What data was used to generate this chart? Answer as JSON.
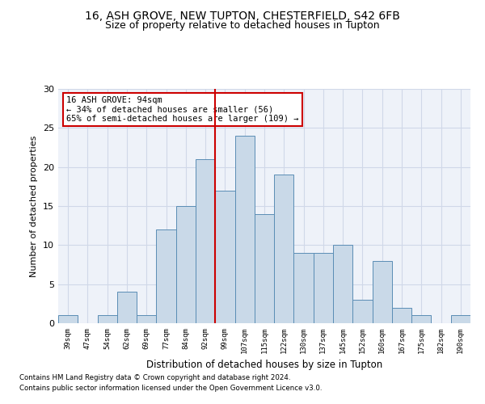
{
  "title_line1": "16, ASH GROVE, NEW TUPTON, CHESTERFIELD, S42 6FB",
  "title_line2": "Size of property relative to detached houses in Tupton",
  "xlabel": "Distribution of detached houses by size in Tupton",
  "ylabel": "Number of detached properties",
  "footnote1": "Contains HM Land Registry data © Crown copyright and database right 2024.",
  "footnote2": "Contains public sector information licensed under the Open Government Licence v3.0.",
  "annotation_line1": "16 ASH GROVE: 94sqm",
  "annotation_line2": "← 34% of detached houses are smaller (56)",
  "annotation_line3": "65% of semi-detached houses are larger (109) →",
  "bin_labels": [
    "39sqm",
    "47sqm",
    "54sqm",
    "62sqm",
    "69sqm",
    "77sqm",
    "84sqm",
    "92sqm",
    "99sqm",
    "107sqm",
    "115sqm",
    "122sqm",
    "130sqm",
    "137sqm",
    "145sqm",
    "152sqm",
    "160sqm",
    "167sqm",
    "175sqm",
    "182sqm",
    "190sqm"
  ],
  "bar_heights": [
    1,
    0,
    1,
    4,
    1,
    12,
    15,
    21,
    17,
    24,
    14,
    19,
    9,
    9,
    10,
    3,
    8,
    2,
    1,
    0,
    1
  ],
  "bar_color": "#c9d9e8",
  "bar_edge_color": "#5a8db5",
  "grid_color": "#d0d8e8",
  "background_color": "#eef2f9",
  "vline_color": "#cc0000",
  "ylim": [
    0,
    30
  ],
  "yticks": [
    0,
    5,
    10,
    15,
    20,
    25,
    30
  ],
  "annotation_box_color": "#cc0000",
  "title_fontsize": 10,
  "subtitle_fontsize": 9,
  "vline_pos": 7.5
}
